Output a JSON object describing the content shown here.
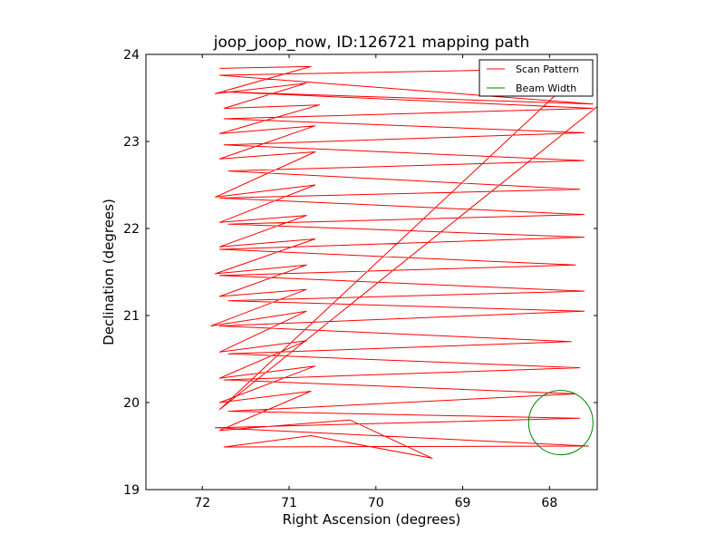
{
  "chart_data": {
    "type": "line",
    "title": "joop_joop_now, ID:126721 mapping path",
    "xlabel": "Right Ascension (degrees)",
    "ylabel": "Declination (degrees)",
    "xlim": [
      72.65,
      67.45
    ],
    "ylim": [
      19,
      24
    ],
    "x_inverted": true,
    "xticks": [
      72,
      71,
      70,
      69,
      68
    ],
    "yticks": [
      19,
      20,
      21,
      22,
      23,
      24
    ],
    "grid": false,
    "legend_placement": "top-right",
    "series": [
      {
        "name": "Scan Pattern",
        "color": "#ff0000",
        "x": [
          71.8,
          70.75,
          71.85,
          70.8,
          71.75,
          70.65,
          71.8,
          70.7,
          71.8,
          70.7,
          71.85,
          70.7,
          71.8,
          70.8,
          71.8,
          70.7,
          71.85,
          70.8,
          71.8,
          70.8,
          71.9,
          70.8,
          71.8,
          70.8,
          71.8,
          70.7,
          71.8,
          70.75,
          71.8,
          70.3,
          69.35,
          70.75,
          71.75,
          67.55,
          71.85,
          67.65,
          71.7,
          67.7,
          71.75,
          67.65,
          71.7,
          67.75,
          71.8,
          67.6,
          71.7,
          67.6,
          71.8,
          67.7,
          71.8,
          67.6,
          71.7,
          67.6,
          71.8,
          67.65,
          71.7,
          67.6,
          71.75,
          67.6,
          71.75,
          67.5,
          71.75,
          67.5,
          71.8,
          67.6,
          71.8,
          67.45
        ],
        "y": [
          23.84,
          23.86,
          23.55,
          23.67,
          23.38,
          23.42,
          23.09,
          23.18,
          22.8,
          22.88,
          22.36,
          22.5,
          22.07,
          22.15,
          21.79,
          21.88,
          21.48,
          21.58,
          21.22,
          21.3,
          20.88,
          21.05,
          20.58,
          20.71,
          20.28,
          20.42,
          20.0,
          20.13,
          19.68,
          19.8,
          19.36,
          19.62,
          19.49,
          19.5,
          19.71,
          19.82,
          19.9,
          20.1,
          20.26,
          20.4,
          20.56,
          20.7,
          20.88,
          21.05,
          21.17,
          21.28,
          21.46,
          21.58,
          21.76,
          21.9,
          22.05,
          22.16,
          22.35,
          22.45,
          22.66,
          22.78,
          22.96,
          23.1,
          23.26,
          23.38,
          23.57,
          23.43,
          23.76,
          23.84,
          19.92,
          23.4
        ]
      },
      {
        "name": "Beam Width",
        "color": "#008000",
        "shape": "circle",
        "center": [
          67.87,
          19.77
        ],
        "radius_deg": 0.37
      }
    ]
  }
}
